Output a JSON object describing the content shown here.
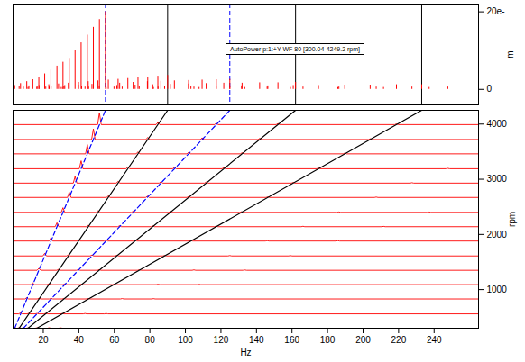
{
  "chart_data": {
    "type": "waterfall",
    "title": "AutoPower p:1:+Y WF 80 [300.04-4249.2 rpm]",
    "x_label": "Hz",
    "y_label": "rpm",
    "z_label": "m",
    "xlim": [
      3,
      265
    ],
    "xticks": [
      20,
      40,
      60,
      80,
      100,
      120,
      140,
      160,
      180,
      200,
      220,
      240
    ],
    "ylim": [
      300.04,
      4249.2
    ],
    "yticks": [
      1000,
      2000,
      3000,
      4000
    ],
    "zlim": [
      -4,
      22
    ],
    "zticks": [
      0,
      {
        "value": 20,
        "label": "20e-"
      }
    ],
    "color": "#ff0000",
    "traces": [
      {
        "rpm": 300.04,
        "peaks": [
          [
            3.9,
            1
          ],
          [
            6.4,
            0.8
          ],
          [
            8.8,
            0.6
          ],
          [
            11.4,
            0.5
          ],
          [
            16.4,
            0.5
          ],
          [
            23.3,
            0.6
          ],
          [
            29.7,
            0.5
          ]
        ]
      },
      {
        "rpm": 560,
        "peaks": [
          [
            7.2,
            1.5
          ],
          [
            11.9,
            0.9
          ],
          [
            16.5,
            0.7
          ],
          [
            21.4,
            0.6
          ],
          [
            30.7,
            0.5
          ],
          [
            43.5,
            0.6
          ],
          [
            55.4,
            0.5
          ]
        ]
      },
      {
        "rpm": 830,
        "peaks": [
          [
            10.7,
            2
          ],
          [
            17.6,
            1
          ],
          [
            24.4,
            0.8
          ],
          [
            31.6,
            0.7
          ],
          [
            45.5,
            0.6
          ],
          [
            64.4,
            0.6
          ],
          [
            82.0,
            0.5
          ]
        ]
      },
      {
        "rpm": 1090,
        "peaks": [
          [
            14.1,
            2.5
          ],
          [
            23.1,
            1.2
          ],
          [
            32.1,
            1
          ],
          [
            41.6,
            0.8
          ],
          [
            59.8,
            0.6
          ],
          [
            84.6,
            0.6
          ],
          [
            107.7,
            0.5
          ]
        ]
      },
      {
        "rpm": 1350,
        "peaks": [
          [
            17.5,
            3
          ],
          [
            28.6,
            1.4
          ],
          [
            39.7,
            1.1
          ],
          [
            51.5,
            0.9
          ],
          [
            74.0,
            0.7
          ],
          [
            104.8,
            0.6
          ],
          [
            133.4,
            0.5
          ]
        ]
      },
      {
        "rpm": 1610,
        "peaks": [
          [
            20.8,
            4
          ],
          [
            34.1,
            1.6
          ],
          [
            47.4,
            1.3
          ],
          [
            61.4,
            1
          ],
          [
            88.3,
            0.7
          ],
          [
            125.0,
            0.6
          ],
          [
            159.1,
            0.5
          ]
        ]
      },
      {
        "rpm": 1880,
        "peaks": [
          [
            24.3,
            5
          ],
          [
            39.8,
            1.8
          ],
          [
            55.3,
            1.4
          ],
          [
            71.7,
            1.1
          ],
          [
            103.1,
            0.8
          ],
          [
            146.0,
            0.6
          ],
          [
            185.8,
            0.5
          ]
        ]
      },
      {
        "rpm": 2140,
        "peaks": [
          [
            27.7,
            6
          ],
          [
            45.3,
            2
          ],
          [
            63.0,
            1.6
          ],
          [
            81.6,
            1.2
          ],
          [
            117.3,
            0.8
          ],
          [
            166.2,
            0.6
          ],
          [
            211.5,
            0.5
          ]
        ]
      },
      {
        "rpm": 2400,
        "peaks": [
          [
            31.1,
            7
          ],
          [
            50.8,
            2.2
          ],
          [
            70.6,
            1.8
          ],
          [
            91.5,
            1.3
          ],
          [
            131.6,
            0.9
          ],
          [
            186.4,
            0.6
          ],
          [
            237.2,
            0.5
          ]
        ]
      },
      {
        "rpm": 2670,
        "peaks": [
          [
            34.6,
            8
          ],
          [
            56.6,
            2.4
          ],
          [
            78.6,
            2
          ],
          [
            101.8,
            1.4
          ],
          [
            146.4,
            0.9
          ],
          [
            207.4,
            0.6
          ]
        ]
      },
      {
        "rpm": 2930,
        "peaks": [
          [
            37.9,
            10
          ],
          [
            62.1,
            2.6
          ],
          [
            86.2,
            2.1
          ],
          [
            111.7,
            1.5
          ],
          [
            160.7,
            1
          ],
          [
            227.5,
            0.6
          ]
        ]
      },
      {
        "rpm": 3190,
        "peaks": [
          [
            41.3,
            12
          ],
          [
            67.6,
            2.8
          ],
          [
            93.8,
            2.2
          ],
          [
            121.6,
            1.6
          ],
          [
            174.9,
            1
          ],
          [
            247.7,
            0.6
          ]
        ]
      },
      {
        "rpm": 3460,
        "peaks": [
          [
            44.8,
            14
          ],
          [
            73.3,
            3
          ],
          [
            101.8,
            2.3
          ],
          [
            131.9,
            1.6
          ],
          [
            189.7,
            1.1
          ]
        ]
      },
      {
        "rpm": 3720,
        "peaks": [
          [
            48.2,
            16
          ],
          [
            78.8,
            3.2
          ],
          [
            109.4,
            2.4
          ],
          [
            141.8,
            1.7
          ],
          [
            204.0,
            1.1
          ]
        ]
      },
      {
        "rpm": 3990,
        "peaks": [
          [
            51.6,
            18
          ],
          [
            84.5,
            3.4
          ],
          [
            117.4,
            2.5
          ],
          [
            152.1,
            1.7
          ],
          [
            218.8,
            1.2
          ]
        ]
      },
      {
        "rpm": 4249.2,
        "peaks": [
          [
            55,
            20
          ],
          [
            90,
            3.6
          ],
          [
            125,
            2.6
          ],
          [
            162,
            1.8
          ],
          [
            233,
            1.2
          ]
        ]
      }
    ],
    "order_lines": [
      {
        "color": "#0000ff",
        "line_style": "dashed",
        "x": [
          3.9,
          55
        ],
        "y": [
          300.04,
          4249.2
        ]
      },
      {
        "color": "#000000",
        "line_style": "solid",
        "x": [
          6.4,
          90
        ],
        "y": [
          300.04,
          4249.2
        ]
      },
      {
        "color": "#0000ff",
        "line_style": "dashed",
        "x": [
          8.8,
          125
        ],
        "y": [
          300.04,
          4249.2
        ]
      },
      {
        "color": "#000000",
        "line_style": "solid",
        "x": [
          11.4,
          162
        ],
        "y": [
          300.04,
          4249.2
        ]
      },
      {
        "color": "#000000",
        "line_style": "solid",
        "x": [
          16.4,
          233
        ],
        "y": [
          300.04,
          4249.2
        ]
      }
    ],
    "cursors": [
      {
        "x": 55,
        "color": "#0000ff",
        "line_style": "dashed"
      },
      {
        "x": 90,
        "color": "#000000",
        "line_style": "solid"
      },
      {
        "x": 125,
        "color": "#0000ff",
        "line_style": "dashed"
      },
      {
        "x": 162,
        "color": "#000000",
        "line_style": "solid"
      },
      {
        "x": 233,
        "color": "#000000",
        "line_style": "solid"
      }
    ]
  }
}
